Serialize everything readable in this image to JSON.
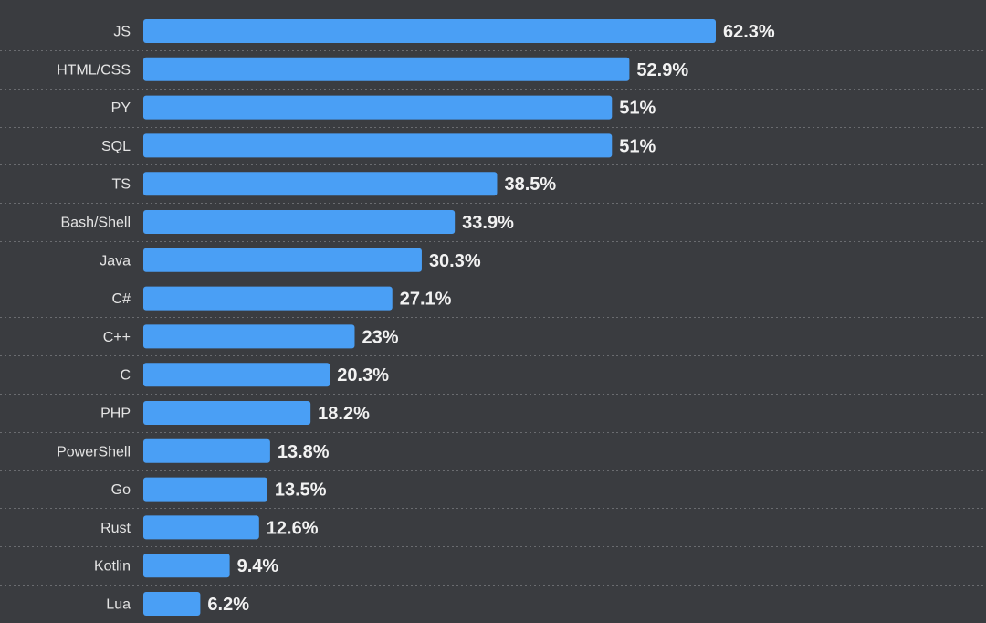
{
  "chart_data": {
    "type": "bar",
    "orientation": "horizontal",
    "categories": [
      "JS",
      "HTML/CSS",
      "PY",
      "SQL",
      "TS",
      "Bash/Shell",
      "Java",
      "C#",
      "C++",
      "C",
      "PHP",
      "PowerShell",
      "Go",
      "Rust",
      "Kotlin",
      "Lua"
    ],
    "values": [
      62.3,
      52.9,
      51,
      51,
      38.5,
      33.9,
      30.3,
      27.1,
      23,
      20.3,
      18.2,
      13.8,
      13.5,
      12.6,
      9.4,
      6.2
    ],
    "value_labels": [
      "62.3%",
      "52.9%",
      "51%",
      "51%",
      "38.5%",
      "33.9%",
      "30.3%",
      "27.1%",
      "23%",
      "20.3%",
      "18.2%",
      "13.8%",
      "13.5%",
      "12.6%",
      "9.4%",
      "6.2%"
    ],
    "title": "",
    "xlabel": "",
    "ylabel": "",
    "xlim": [
      0,
      62.3
    ],
    "grid": false,
    "legend": "none"
  },
  "colors": {
    "background": "#3a3c40",
    "bar": "#4a9ff5",
    "category_text": "#e4e4e4",
    "value_text": "#f2f2f2",
    "divider": "#6a6c70"
  }
}
